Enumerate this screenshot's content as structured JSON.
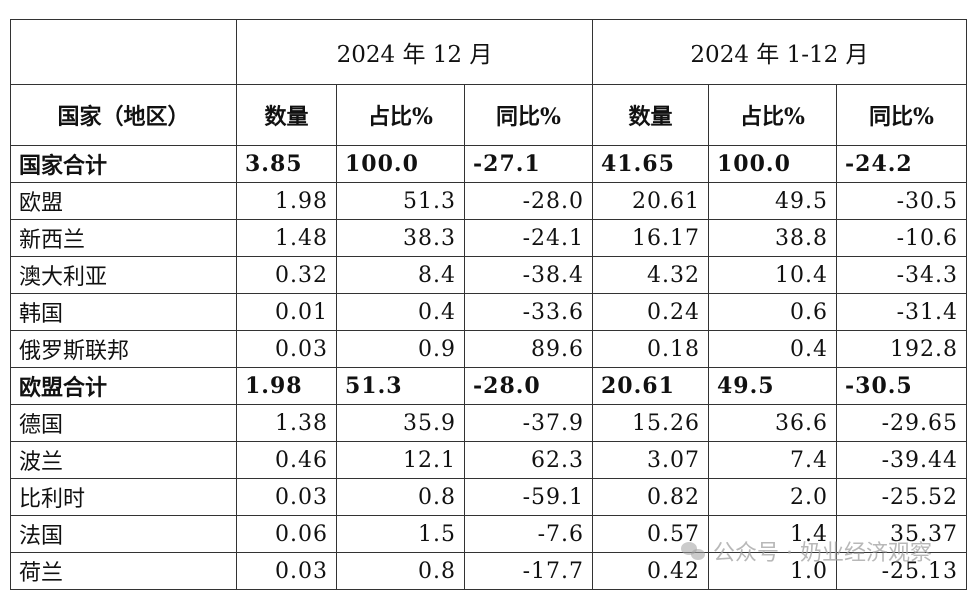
{
  "table": {
    "period_1": "2024 年 12 月",
    "period_2": "2024 年 1-12 月",
    "col_country": "国家（地区）",
    "col_quantity": "数量",
    "col_share": "占比%",
    "col_yoy": "同比%",
    "rows": [
      {
        "name": "国家合计",
        "q1": "3.85",
        "s1": "100.0",
        "y1": "-27.1",
        "q2": "41.65",
        "s2": "100.0",
        "y2": "-24.2",
        "total": true
      },
      {
        "name": "欧盟",
        "q1": "1.98",
        "s1": "51.3",
        "y1": "-28.0",
        "q2": "20.61",
        "s2": "49.5",
        "y2": "-30.5",
        "total": false
      },
      {
        "name": "新西兰",
        "q1": "1.48",
        "s1": "38.3",
        "y1": "-24.1",
        "q2": "16.17",
        "s2": "38.8",
        "y2": "-10.6",
        "total": false
      },
      {
        "name": "澳大利亚",
        "q1": "0.32",
        "s1": "8.4",
        "y1": "-38.4",
        "q2": "4.32",
        "s2": "10.4",
        "y2": "-34.3",
        "total": false
      },
      {
        "name": "韩国",
        "q1": "0.01",
        "s1": "0.4",
        "y1": "-33.6",
        "q2": "0.24",
        "s2": "0.6",
        "y2": "-31.4",
        "total": false
      },
      {
        "name": "俄罗斯联邦",
        "q1": "0.03",
        "s1": "0.9",
        "y1": "89.6",
        "q2": "0.18",
        "s2": "0.4",
        "y2": "192.8",
        "total": false
      },
      {
        "name": "欧盟合计",
        "q1": "1.98",
        "s1": "51.3",
        "y1": "-28.0",
        "q2": "20.61",
        "s2": "49.5",
        "y2": "-30.5",
        "total": true
      },
      {
        "name": "德国",
        "q1": "1.38",
        "s1": "35.9",
        "y1": "-37.9",
        "q2": "15.26",
        "s2": "36.6",
        "y2": "-29.65",
        "total": false
      },
      {
        "name": "波兰",
        "q1": "0.46",
        "s1": "12.1",
        "y1": "62.3",
        "q2": "3.07",
        "s2": "7.4",
        "y2": "-39.44",
        "total": false
      },
      {
        "name": "比利时",
        "q1": "0.03",
        "s1": "0.8",
        "y1": "-59.1",
        "q2": "0.82",
        "s2": "2.0",
        "y2": "-25.52",
        "total": false
      },
      {
        "name": "法国",
        "q1": "0.06",
        "s1": "1.5",
        "y1": "-7.6",
        "q2": "0.57",
        "s2": "1.4",
        "y2": "35.37",
        "total": false
      },
      {
        "name": "荷兰",
        "q1": "0.03",
        "s1": "0.8",
        "y1": "-17.7",
        "q2": "0.42",
        "s2": "1.0",
        "y2": "-25.13",
        "total": false
      }
    ]
  },
  "watermark": {
    "text": "公众号 · 奶业经济观察",
    "icon": "wechat-logo-icon"
  }
}
